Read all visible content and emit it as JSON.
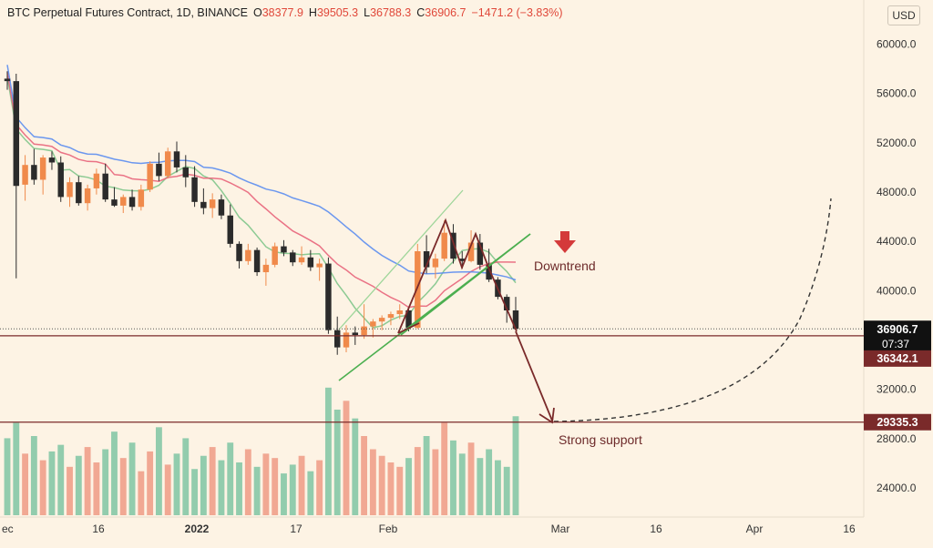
{
  "header": {
    "symbol": "BTC Perpetual Futures Contract, 1D, BINANCE",
    "open_label": "O",
    "open": "38377.9",
    "high_label": "H",
    "high": "39505.3",
    "low_label": "L",
    "low": "36788.3",
    "close_label": "C",
    "close": "36906.7",
    "change": "−1471.2 (−3.83%)"
  },
  "currency": "USD",
  "colors": {
    "background": "#fdf3e4",
    "up": "#f08a4b",
    "down": "#2b2b2b",
    "volume_up": "#f0a08a",
    "volume_down": "#86c8a6",
    "ma_fast": "#7fc58a",
    "ma_mid": "#e8647a",
    "ma_slow": "#5b8def",
    "channel": "#4caf50",
    "pattern": "#7a2a2a",
    "support_line": "#7a2a2a",
    "price_label": "#111111",
    "support_label": "#7a2a2a"
  },
  "chart_data": {
    "type": "candlestick",
    "title": "BTC Perpetual Futures Contract, 1D, BINANCE",
    "ylim": [
      22000,
      62000
    ],
    "y_ticks": [
      "60000.0",
      "56000.0",
      "52000.0",
      "48000.0",
      "44000.0",
      "40000.0",
      "32000.0",
      "28000.0",
      "24000.0"
    ],
    "x_ticks": [
      "ec",
      "16",
      "2022",
      "17",
      "Feb",
      "Mar",
      "16",
      "Apr",
      "16"
    ],
    "grid": false,
    "candles_approx": [
      [
        57200,
        57800,
        56300,
        57000
      ],
      [
        57000,
        57600,
        41000,
        48500
      ],
      [
        48600,
        51000,
        47300,
        50200
      ],
      [
        50200,
        51500,
        48600,
        49000
      ],
      [
        49000,
        51000,
        47800,
        50800
      ],
      [
        50800,
        51300,
        49800,
        50400
      ],
      [
        50400,
        50900,
        47200,
        47600
      ],
      [
        47600,
        49200,
        46800,
        48800
      ],
      [
        48800,
        49300,
        46900,
        47100
      ],
      [
        47100,
        48600,
        46500,
        48300
      ],
      [
        48300,
        49900,
        47800,
        49500
      ],
      [
        49500,
        50300,
        47200,
        47400
      ],
      [
        47400,
        48400,
        46800,
        46900
      ],
      [
        46900,
        47800,
        46300,
        47600
      ],
      [
        47600,
        48200,
        46500,
        46800
      ],
      [
        46800,
        48600,
        46500,
        48200
      ],
      [
        48200,
        50500,
        48000,
        50300
      ],
      [
        50300,
        51200,
        48900,
        49300
      ],
      [
        49300,
        51600,
        49100,
        51300
      ],
      [
        51300,
        52100,
        49600,
        50000
      ],
      [
        50000,
        51000,
        48400,
        49200
      ],
      [
        49200,
        50100,
        46800,
        47200
      ],
      [
        47200,
        48300,
        46200,
        46700
      ],
      [
        46700,
        47900,
        45900,
        47400
      ],
      [
        47400,
        47800,
        45800,
        46100
      ],
      [
        46100,
        47000,
        43500,
        43800
      ],
      [
        43800,
        44000,
        41800,
        42400
      ],
      [
        42400,
        43800,
        42100,
        43300
      ],
      [
        43300,
        43500,
        41200,
        41500
      ],
      [
        41500,
        42600,
        40400,
        42100
      ],
      [
        42100,
        43900,
        41900,
        43600
      ],
      [
        43600,
        44100,
        42800,
        43100
      ],
      [
        43100,
        43300,
        42000,
        42300
      ],
      [
        42300,
        43600,
        42100,
        42700
      ],
      [
        42700,
        43300,
        41600,
        41900
      ],
      [
        41900,
        42600,
        40800,
        42200
      ],
      [
        42200,
        42700,
        36500,
        36800
      ],
      [
        36800,
        37900,
        34800,
        35400
      ],
      [
        35400,
        37200,
        35000,
        36600
      ],
      [
        36600,
        37100,
        35600,
        36400
      ],
      [
        36400,
        38900,
        36100,
        37100
      ],
      [
        37100,
        37700,
        36200,
        37500
      ],
      [
        37500,
        38000,
        36800,
        37800
      ],
      [
        37800,
        38300,
        37200,
        38100
      ],
      [
        38100,
        38900,
        37700,
        38400
      ],
      [
        38400,
        38600,
        36700,
        37000
      ],
      [
        37000,
        43800,
        36900,
        43200
      ],
      [
        43200,
        44500,
        41400,
        41900
      ],
      [
        41900,
        43000,
        41000,
        42600
      ],
      [
        42600,
        45700,
        42400,
        44700
      ],
      [
        44700,
        45400,
        42200,
        42600
      ],
      [
        42600,
        43200,
        41800,
        42400
      ],
      [
        42400,
        44900,
        42300,
        43900
      ],
      [
        43900,
        44600,
        41700,
        42100
      ],
      [
        42100,
        43400,
        40700,
        40900
      ],
      [
        40900,
        41100,
        39300,
        39500
      ],
      [
        39500,
        39700,
        37400,
        38400
      ],
      [
        38400,
        39500,
        36800,
        36900
      ]
    ],
    "volume_approx": [
      0.35,
      0.42,
      0.28,
      0.36,
      0.25,
      0.29,
      0.32,
      0.22,
      0.27,
      0.31,
      0.24,
      0.3,
      0.38,
      0.26,
      0.33,
      0.2,
      0.29,
      0.4,
      0.23,
      0.28,
      0.35,
      0.21,
      0.27,
      0.31,
      0.25,
      0.33,
      0.24,
      0.3,
      0.22,
      0.28,
      0.26,
      0.19,
      0.23,
      0.27,
      0.2,
      0.25,
      0.58,
      0.48,
      0.52,
      0.44,
      0.36,
      0.3,
      0.27,
      0.24,
      0.22,
      0.26,
      0.31,
      0.36,
      0.3,
      0.42,
      0.34,
      0.28,
      0.33,
      0.26,
      0.3,
      0.25,
      0.22,
      0.45
    ],
    "current_price": "36906.7",
    "countdown": "07:37",
    "support_level_1": "36342.1",
    "support_level_2": "29335.3",
    "annotations": [
      "Downtrend",
      "Strong support"
    ]
  }
}
